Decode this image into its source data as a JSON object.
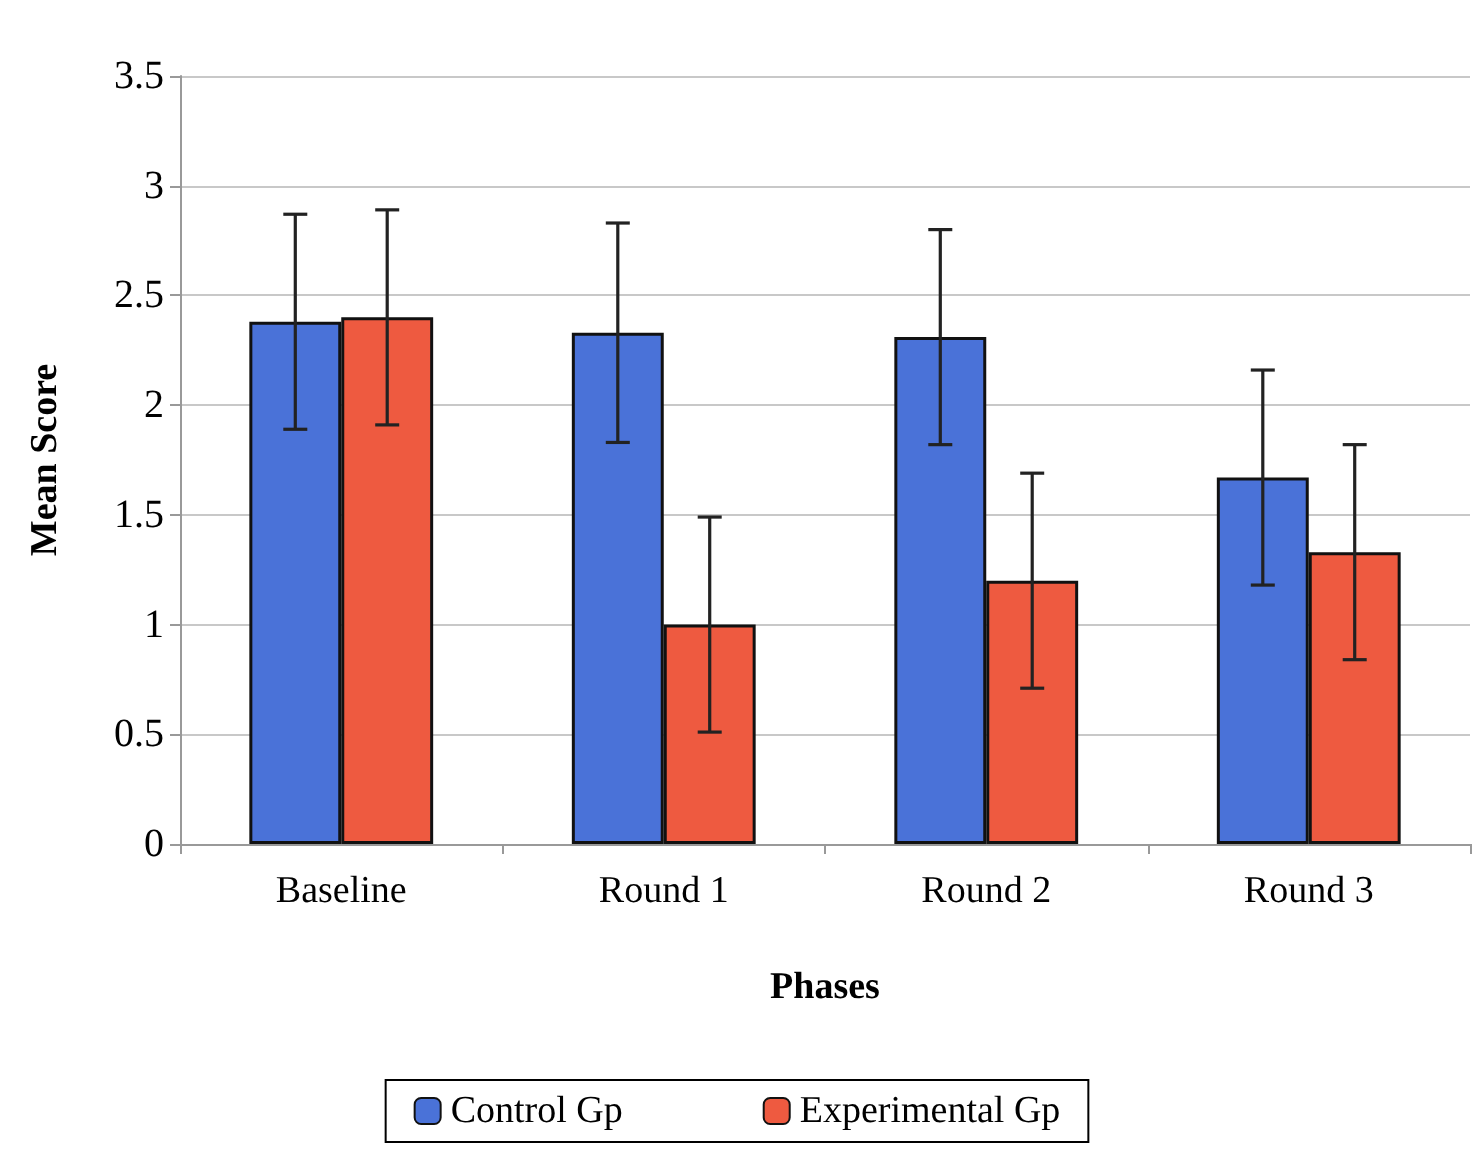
{
  "chart_data": {
    "type": "bar",
    "xlabel": "Phases",
    "ylabel": "Mean Score",
    "categories": [
      "Baseline",
      "Round 1",
      "Round 2",
      "Round 3"
    ],
    "series": [
      {
        "name": "Control Gp",
        "color": "#4a72d8",
        "values": [
          2.38,
          2.33,
          2.31,
          1.67
        ],
        "errors": [
          0.49,
          0.5,
          0.49,
          0.49
        ]
      },
      {
        "name": "Experimental Gp",
        "color": "#ee5a40",
        "values": [
          2.4,
          1.0,
          1.2,
          1.33
        ],
        "errors": [
          0.49,
          0.49,
          0.49,
          0.49
        ]
      }
    ],
    "ylim": [
      0,
      3.5
    ],
    "yticks": [
      0,
      0.5,
      1,
      1.5,
      2,
      2.5,
      3,
      3.5
    ],
    "grid": "y",
    "legend": "bottom"
  }
}
